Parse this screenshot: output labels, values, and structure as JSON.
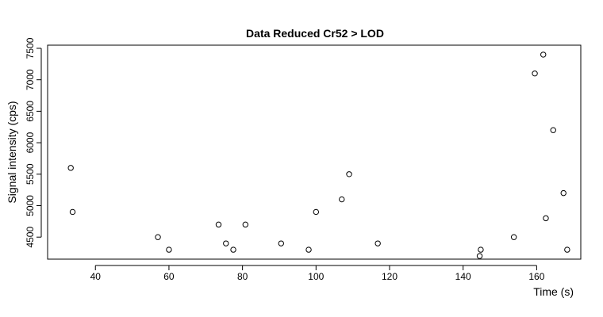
{
  "chart_data": {
    "type": "scatter",
    "title": "Data Reduced Cr52 > LOD",
    "xlabel": "Time (s)",
    "ylabel": "Signal intensity (cps)",
    "xlim": [
      27,
      172
    ],
    "ylim": [
      4150,
      7550
    ],
    "xticks": [
      40,
      60,
      80,
      100,
      120,
      140,
      160
    ],
    "yticks": [
      4500,
      5000,
      5500,
      6000,
      6500,
      7000,
      7500
    ],
    "grid": false,
    "points": [
      {
        "x": 33.3,
        "y": 5600
      },
      {
        "x": 33.8,
        "y": 4900
      },
      {
        "x": 57.0,
        "y": 4500
      },
      {
        "x": 60.0,
        "y": 4300
      },
      {
        "x": 73.5,
        "y": 4700
      },
      {
        "x": 75.5,
        "y": 4400
      },
      {
        "x": 77.5,
        "y": 4300
      },
      {
        "x": 80.8,
        "y": 4700
      },
      {
        "x": 90.5,
        "y": 4400
      },
      {
        "x": 98.0,
        "y": 4300
      },
      {
        "x": 100.0,
        "y": 4900
      },
      {
        "x": 107.0,
        "y": 5100
      },
      {
        "x": 109.0,
        "y": 5500
      },
      {
        "x": 116.8,
        "y": 4400
      },
      {
        "x": 144.5,
        "y": 4200
      },
      {
        "x": 144.8,
        "y": 4300
      },
      {
        "x": 153.8,
        "y": 4500
      },
      {
        "x": 159.5,
        "y": 7100
      },
      {
        "x": 161.8,
        "y": 7400
      },
      {
        "x": 162.5,
        "y": 4800
      },
      {
        "x": 164.5,
        "y": 6200
      },
      {
        "x": 167.3,
        "y": 5200
      },
      {
        "x": 168.3,
        "y": 4300
      }
    ]
  }
}
